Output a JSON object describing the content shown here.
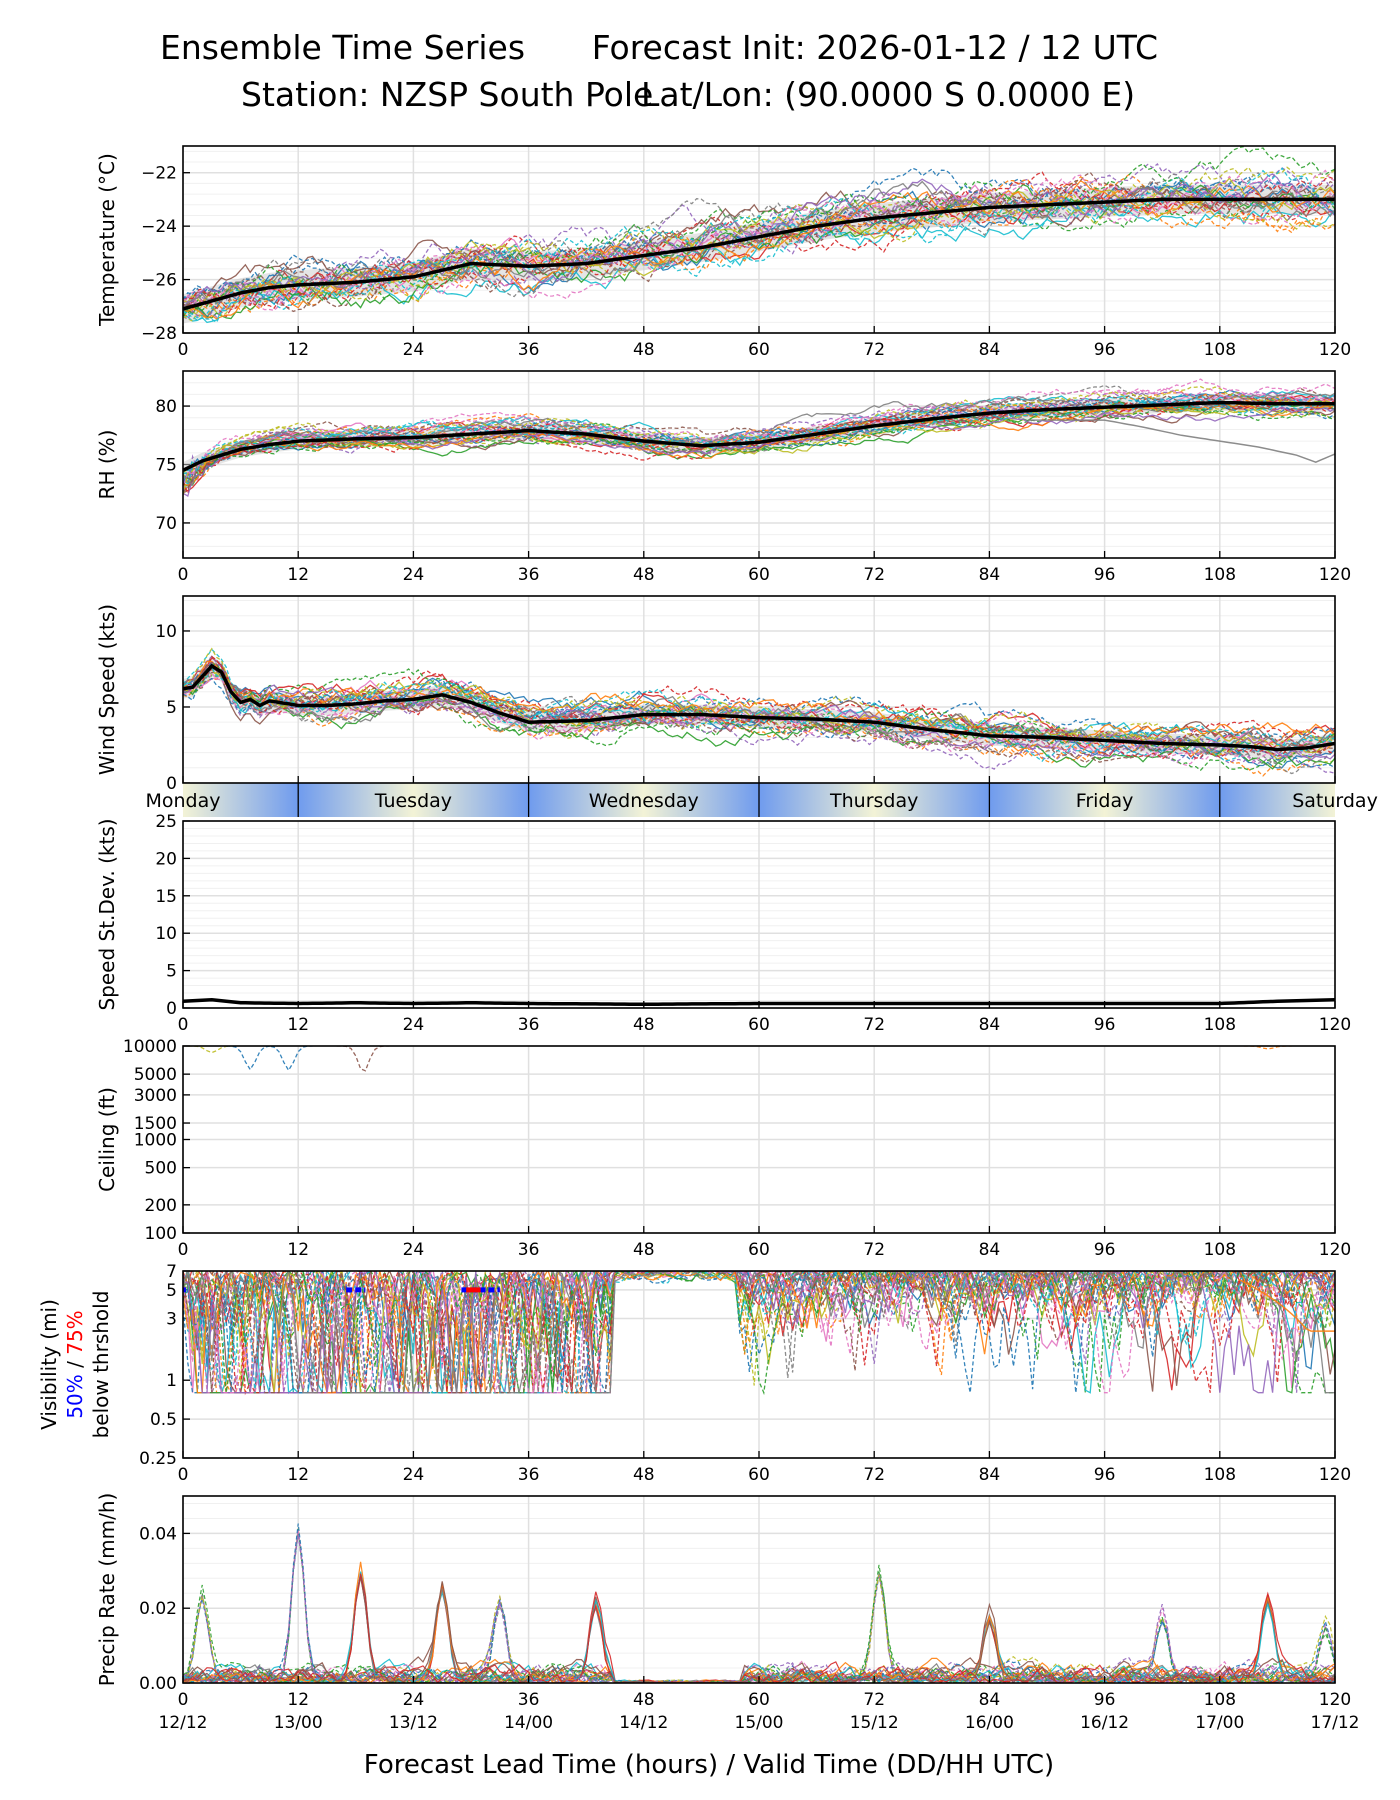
{
  "header": {
    "left_title": "Ensemble Time Series",
    "right_title": "Forecast Init: 2026-01-12 / 12 UTC",
    "station": "Station: NZSP South Pole",
    "latlon": "Lat/Lon: (90.0000 S 0.0000 E)"
  },
  "chart_data": [
    {
      "type": "line",
      "id": "temperature",
      "ylabel": "Temperature (°C)",
      "ylim": [
        -28,
        -21
      ],
      "yticks": [
        -28,
        -26,
        -24,
        -22
      ],
      "mean": {
        "x": [
          0,
          3,
          6,
          9,
          12,
          18,
          24,
          30,
          36,
          42,
          48,
          54,
          60,
          66,
          72,
          78,
          84,
          90,
          96,
          102,
          108,
          114,
          120
        ],
        "values": [
          -27.1,
          -26.8,
          -26.5,
          -26.3,
          -26.2,
          -26.1,
          -25.9,
          -25.4,
          -25.5,
          -25.4,
          -25.1,
          -24.8,
          -24.4,
          -24.0,
          -23.7,
          -23.5,
          -23.3,
          -23.2,
          -23.1,
          -23.0,
          -23.0,
          -23.0,
          -23.0
        ]
      },
      "spread": 0.55
    },
    {
      "type": "line",
      "id": "rh",
      "ylabel": "RH (%)",
      "ylim": [
        67,
        83
      ],
      "yticks": [
        70,
        75,
        80
      ],
      "mean": {
        "x": [
          0,
          2,
          4,
          6,
          9,
          12,
          18,
          24,
          30,
          36,
          42,
          48,
          54,
          60,
          66,
          72,
          78,
          84,
          90,
          96,
          102,
          108,
          114,
          120
        ],
        "values": [
          74.5,
          75.3,
          75.8,
          76.3,
          76.7,
          77.0,
          77.2,
          77.3,
          77.6,
          77.9,
          77.6,
          77.0,
          76.6,
          76.9,
          77.6,
          78.3,
          78.9,
          79.4,
          79.7,
          79.9,
          80.1,
          80.3,
          80.2,
          80.2
        ]
      },
      "spread": 0.7,
      "outlier": {
        "x": [
          96,
          100,
          104,
          108,
          112,
          116,
          118,
          120
        ],
        "values": [
          78.8,
          78.2,
          77.5,
          77.0,
          76.5,
          75.8,
          75.2,
          75.9
        ]
      }
    },
    {
      "type": "line",
      "id": "wind_speed",
      "ylabel": "Wind Speed (kts)",
      "ylim": [
        0,
        12.3
      ],
      "yticks": [
        0,
        5,
        10
      ],
      "mean": {
        "x": [
          0,
          1,
          2,
          3,
          4,
          5,
          6,
          7,
          8,
          9,
          10,
          12,
          15,
          18,
          21,
          24,
          27,
          30,
          33,
          36,
          42,
          48,
          54,
          60,
          66,
          72,
          78,
          84,
          90,
          96,
          102,
          108,
          111,
          114,
          117,
          120
        ],
        "values": [
          6.2,
          6.3,
          7.0,
          7.7,
          7.3,
          6.0,
          5.3,
          5.5,
          5.1,
          5.4,
          5.3,
          5.1,
          5.1,
          5.2,
          5.4,
          5.5,
          5.8,
          5.3,
          4.6,
          4.0,
          4.1,
          4.5,
          4.5,
          4.3,
          4.2,
          4.0,
          3.5,
          3.1,
          3.0,
          2.8,
          2.6,
          2.5,
          2.4,
          2.2,
          2.3,
          2.6
        ]
      },
      "spread": 0.65
    },
    {
      "type": "line",
      "id": "speed_stdev",
      "ylabel": "Speed St.Dev. (kts)",
      "ylim": [
        0,
        25
      ],
      "yticks": [
        0,
        5,
        10,
        15,
        20,
        25
      ],
      "mean": {
        "x": [
          0,
          3,
          6,
          12,
          18,
          24,
          30,
          36,
          48,
          60,
          72,
          84,
          96,
          108,
          114,
          120
        ],
        "values": [
          0.9,
          1.1,
          0.7,
          0.6,
          0.7,
          0.6,
          0.7,
          0.6,
          0.5,
          0.6,
          0.6,
          0.6,
          0.6,
          0.6,
          0.9,
          1.1
        ]
      }
    },
    {
      "type": "line",
      "id": "ceiling",
      "ylabel": "Ceiling (ft)",
      "yscale": "log",
      "ylim": [
        100,
        10000
      ],
      "yticks": [
        100,
        200,
        500,
        1000,
        1500,
        3000,
        5000,
        10000
      ]
    },
    {
      "type": "line",
      "id": "visibility",
      "ylabel": "Visibility (mi)",
      "ylabel2": "below thrshold",
      "legend_50": "50%",
      "legend_75": "75%",
      "legend_sep": "/",
      "yscale": "log",
      "ylim": [
        0.25,
        7
      ],
      "yticks": [
        0.25,
        0.5,
        1,
        3,
        5,
        7
      ],
      "below_50_hours": [
        [
          0,
          0.3
        ],
        [
          17,
          19
        ],
        [
          29,
          33
        ]
      ],
      "below_75_hours": [
        [
          29.5,
          31
        ]
      ]
    },
    {
      "type": "line",
      "id": "precip_rate",
      "ylabel": "Precip Rate (mm/h)",
      "ylim": [
        0,
        0.05
      ],
      "yticks": [
        0.0,
        0.02,
        0.04
      ],
      "ytick_labels": [
        "0.00",
        "0.02",
        "0.04"
      ],
      "peaks": [
        [
          12,
          0.04
        ],
        [
          18.5,
          0.028
        ],
        [
          2,
          0.022
        ],
        [
          27,
          0.024
        ],
        [
          33,
          0.02
        ],
        [
          43,
          0.02
        ],
        [
          72.5,
          0.028
        ],
        [
          84,
          0.016
        ],
        [
          102,
          0.016
        ],
        [
          113,
          0.021
        ],
        [
          119,
          0.013
        ]
      ]
    }
  ],
  "x_axis": {
    "range": [
      0,
      120
    ],
    "ticks": [
      0,
      12,
      24,
      36,
      48,
      60,
      72,
      84,
      96,
      108,
      120
    ],
    "tick_labels": [
      "0",
      "12",
      "24",
      "36",
      "48",
      "60",
      "72",
      "84",
      "96",
      "108",
      "120"
    ],
    "valid_labels": [
      "12/12",
      "13/00",
      "13/12",
      "14/00",
      "14/12",
      "15/00",
      "15/12",
      "16/00",
      "16/12",
      "17/00",
      "17/12"
    ],
    "xlabel": "Forecast Lead Time (hours) / Valid Time (DD/HH UTC)"
  },
  "day_bar": {
    "days": [
      "Monday",
      "Tuesday",
      "Wednesday",
      "Thursday",
      "Friday",
      "Saturday"
    ],
    "centers_hours": [
      0,
      24,
      48,
      72,
      96,
      120
    ],
    "dividers_hours": [
      12,
      36,
      60,
      84,
      108
    ]
  },
  "colors": {
    "mean": "#000000",
    "grid": "#e0e0e0",
    "spread": "#cccccc",
    "below50": "#0000ff",
    "below75": "#ff0000",
    "day_light": "#f3f3d6",
    "day_dark": "#6f9bee",
    "members": [
      "#1f77b4",
      "#ff7f0e",
      "#2ca02c",
      "#d62728",
      "#9467bd",
      "#8c564b",
      "#e377c2",
      "#7f7f7f",
      "#bcbd22",
      "#17becf"
    ]
  }
}
